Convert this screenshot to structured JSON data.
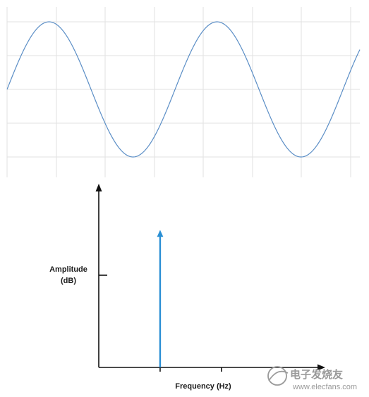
{
  "chart_data": [
    {
      "type": "line",
      "title": "",
      "xlabel": "",
      "ylabel": "",
      "grid": true,
      "series": [
        {
          "function": "sine",
          "cycles": 2.1,
          "amplitude": 1,
          "phase_start": 0,
          "color": "#5b8ec6"
        }
      ],
      "ylim": [
        -1.1,
        1.1
      ]
    },
    {
      "type": "bar",
      "title": "",
      "xlabel": "Frequency (Hz)",
      "ylabel_line1": "Amplitude",
      "ylabel_line2": "(dB)",
      "x_ticks": 2,
      "series": [
        {
          "x": 1,
          "value": 1,
          "color": "#2a8fd4"
        }
      ],
      "xlim": [
        0,
        3.6
      ],
      "ylim": [
        0,
        1.3
      ]
    }
  ],
  "watermark": {
    "line1": "电子发烧友",
    "line2": "www.elecfans.com"
  }
}
